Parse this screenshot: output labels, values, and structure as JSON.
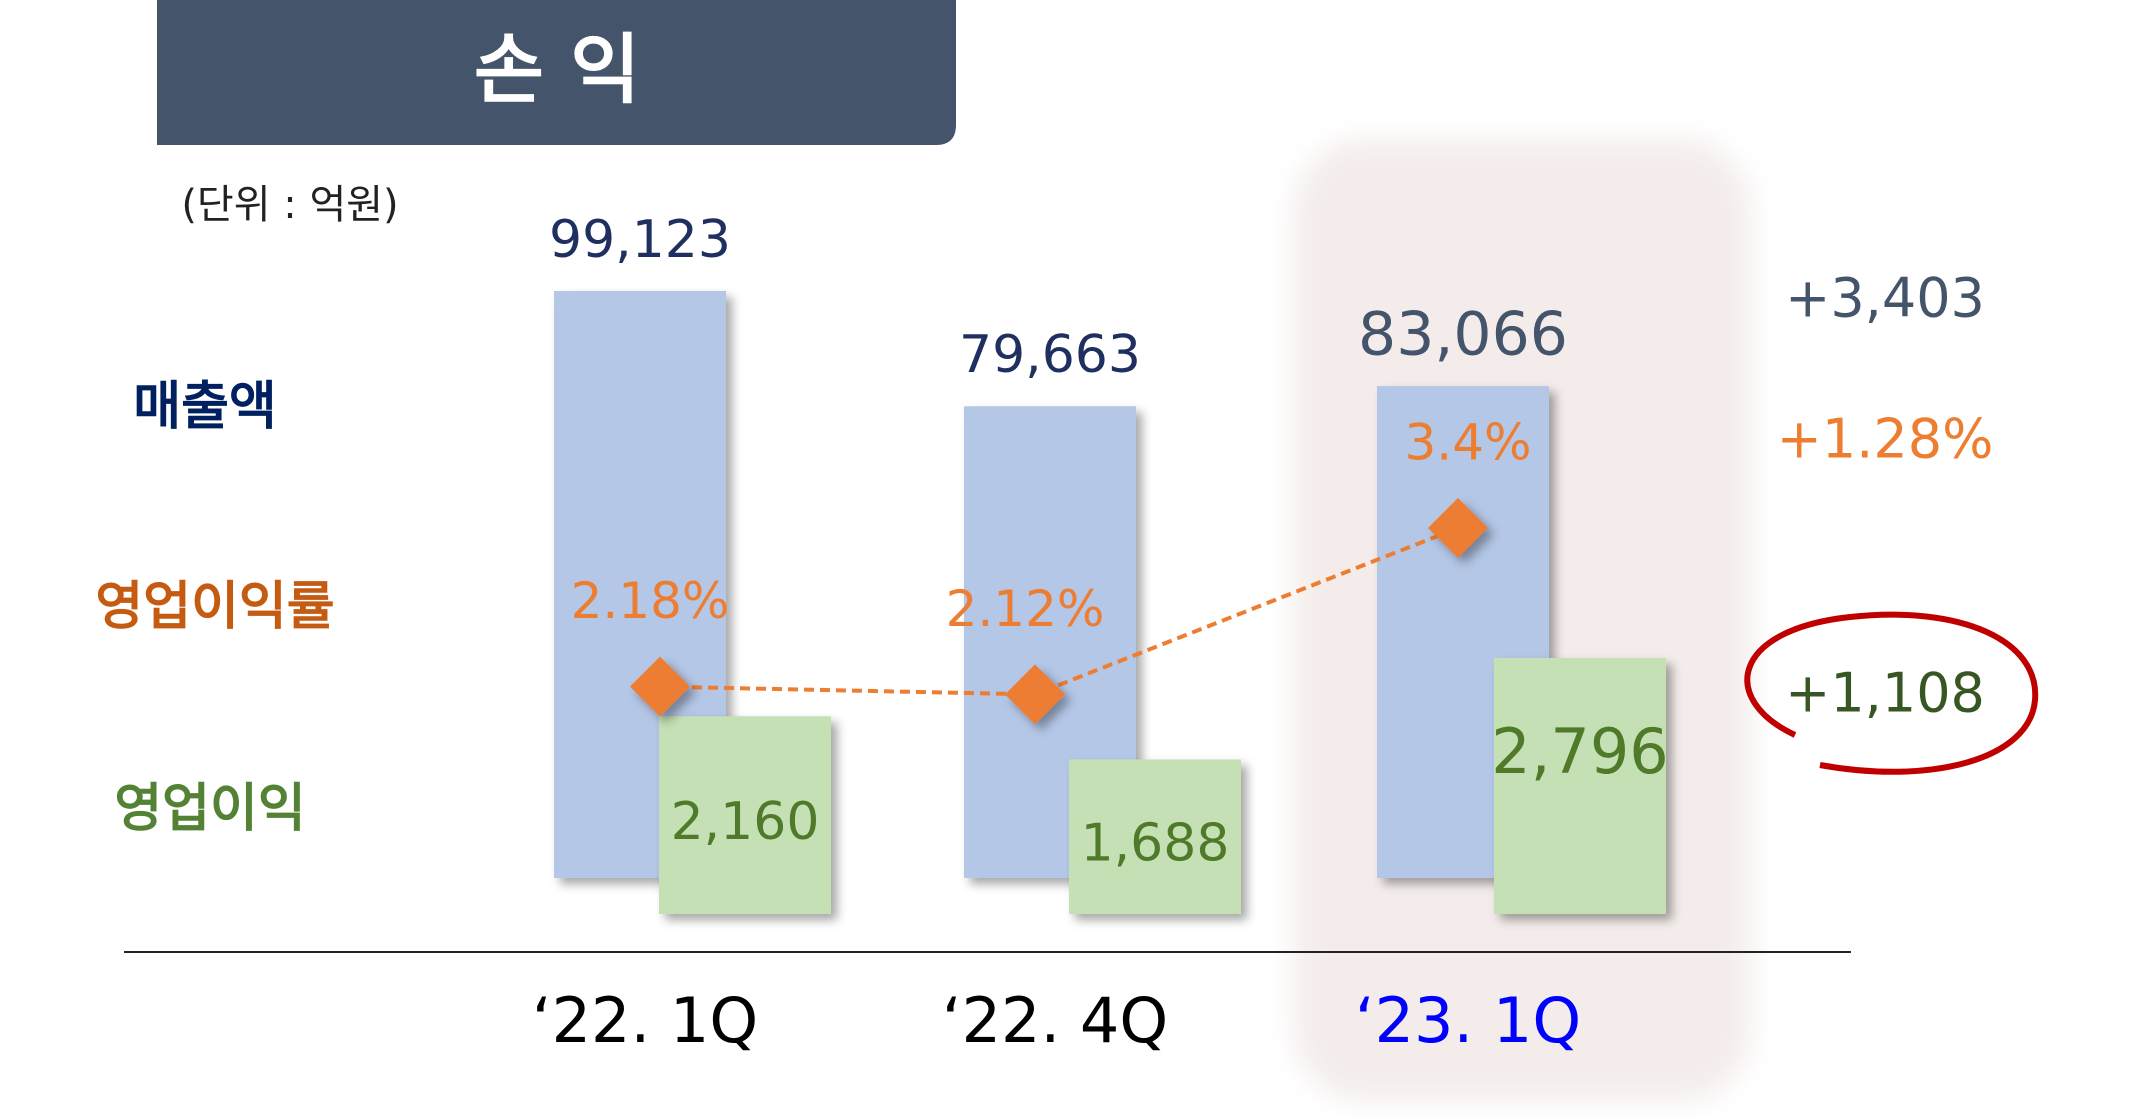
{
  "title": "손 익",
  "unit": "(단위 : 억원)",
  "chart_data": {
    "type": "bar_line",
    "categories": [
      "‘22. 1Q",
      "‘22. 4Q",
      "‘23. 1Q"
    ],
    "series": [
      {
        "name": "매출액",
        "color": "#b4c7e7",
        "values": [
          99123,
          79663,
          83066
        ],
        "value_labels": [
          "99,123",
          "79,663",
          "83,066"
        ]
      },
      {
        "name": "영업이익률",
        "color": "#ed7d31",
        "values": [
          2.18,
          2.12,
          3.4
        ],
        "value_labels": [
          "2.18%",
          "2.12%",
          "3.4%"
        ]
      },
      {
        "name": "영업이익",
        "color": "#c5e0b4",
        "values": [
          2160,
          1688,
          2796
        ],
        "value_labels": [
          "2,160",
          "1,688",
          "2,796"
        ]
      }
    ],
    "changes": [
      "+3,403",
      "+1.28%",
      "+1,108"
    ]
  }
}
